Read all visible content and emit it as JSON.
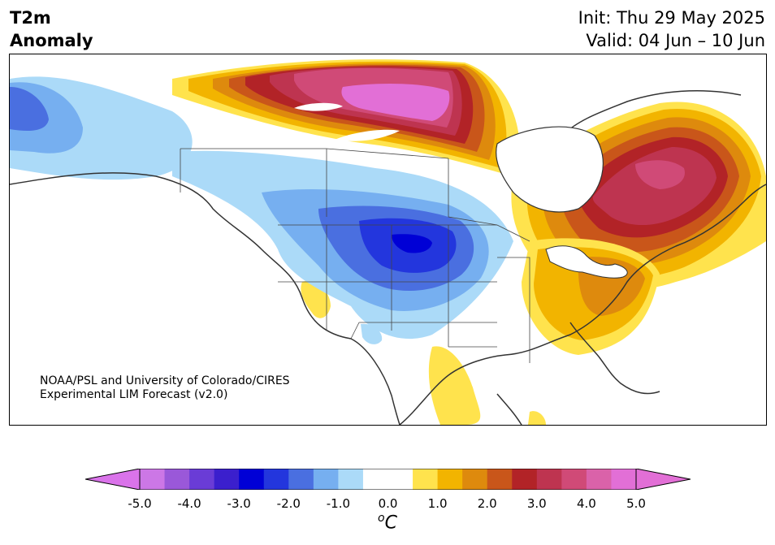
{
  "title": {
    "left_line1": "T2m",
    "left_line2": "Anomaly",
    "right_line1": "Init: Thu 29 May 2025",
    "right_line2": "Valid: 04 Jun – 10 Jun"
  },
  "credit": {
    "line1": "NOAA/PSL and University of Colorado/CIRES",
    "line2": "Experimental LIM Forecast (v2.0)"
  },
  "colorbar": {
    "unit_symbol": "o",
    "unit_letter": "C",
    "ticks": [
      "-5.0",
      "-4.0",
      "-3.0",
      "-2.0",
      "-1.0",
      "0.0",
      "1.0",
      "2.0",
      "3.0",
      "4.0",
      "5.0"
    ],
    "min": -5.0,
    "max": 5.0,
    "colors": [
      "#cc77e6",
      "#9a58d9",
      "#6a3cd6",
      "#3b1fcd",
      "#0000d6",
      "#2336dd",
      "#4a6fe0",
      "#76aff0",
      "#abdaf8",
      "#ffffff",
      "#ffffff",
      "#ffe34d",
      "#f2b400",
      "#de8a0d",
      "#c9561a",
      "#b22327",
      "#be3450",
      "#d04a77",
      "#da62a9",
      "#e26fd6"
    ],
    "under_color": "#da73ea",
    "over_color": "#e26fd6"
  },
  "colors": {
    "warm_1": "#ffe34d",
    "warm_2": "#f2b400",
    "warm_3": "#de8a0d",
    "warm_4": "#c9561a",
    "warm_5": "#b22327",
    "warm_6": "#be3450",
    "warm_7": "#d04a77",
    "warm_8": "#e26fd6",
    "cool_1": "#abdaf8",
    "cool_2": "#76aff0",
    "cool_3": "#4a6fe0",
    "cool_4": "#2336dd",
    "cool_5": "#0000d6"
  }
}
